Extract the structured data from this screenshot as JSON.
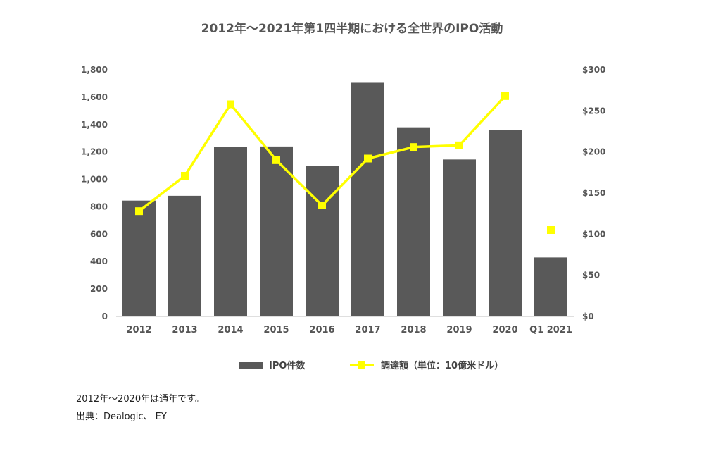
{
  "chart_data": {
    "type": "bar",
    "title": "2012年〜2021年第1四半期における全世界のIPO活動",
    "categories": [
      "2012",
      "2013",
      "2014",
      "2015",
      "2016",
      "2017",
      "2018",
      "2019",
      "2020",
      "Q1 2021"
    ],
    "series": [
      {
        "name": "IPO件数",
        "type": "bar",
        "axis": "left",
        "color": "#595959",
        "values": [
          845,
          880,
          1235,
          1240,
          1100,
          1705,
          1380,
          1145,
          1360,
          430
        ]
      },
      {
        "name": "調達額（単位：10億米ドル）",
        "type": "line",
        "axis": "right",
        "color": "#ffff00",
        "values": [
          128,
          171,
          258,
          190,
          135,
          192,
          206,
          208,
          268,
          105
        ],
        "connected_points": 9
      }
    ],
    "y_left": {
      "ylim": [
        0,
        1800
      ],
      "ticks": [
        "1,800",
        "1,600",
        "1,400",
        "1,200",
        "1,000",
        "800",
        "600",
        "400",
        "200",
        "0"
      ]
    },
    "y_right": {
      "ylim": [
        0,
        300
      ],
      "ticks": [
        "$300",
        "$250",
        "$200",
        "$150",
        "$100",
        "$50",
        "$0"
      ]
    },
    "grid": false,
    "legend_position": "bottom"
  },
  "notes": {
    "line1": "2012年〜2020年は通年です。",
    "line2": "出典：Dealogic、 EY"
  }
}
